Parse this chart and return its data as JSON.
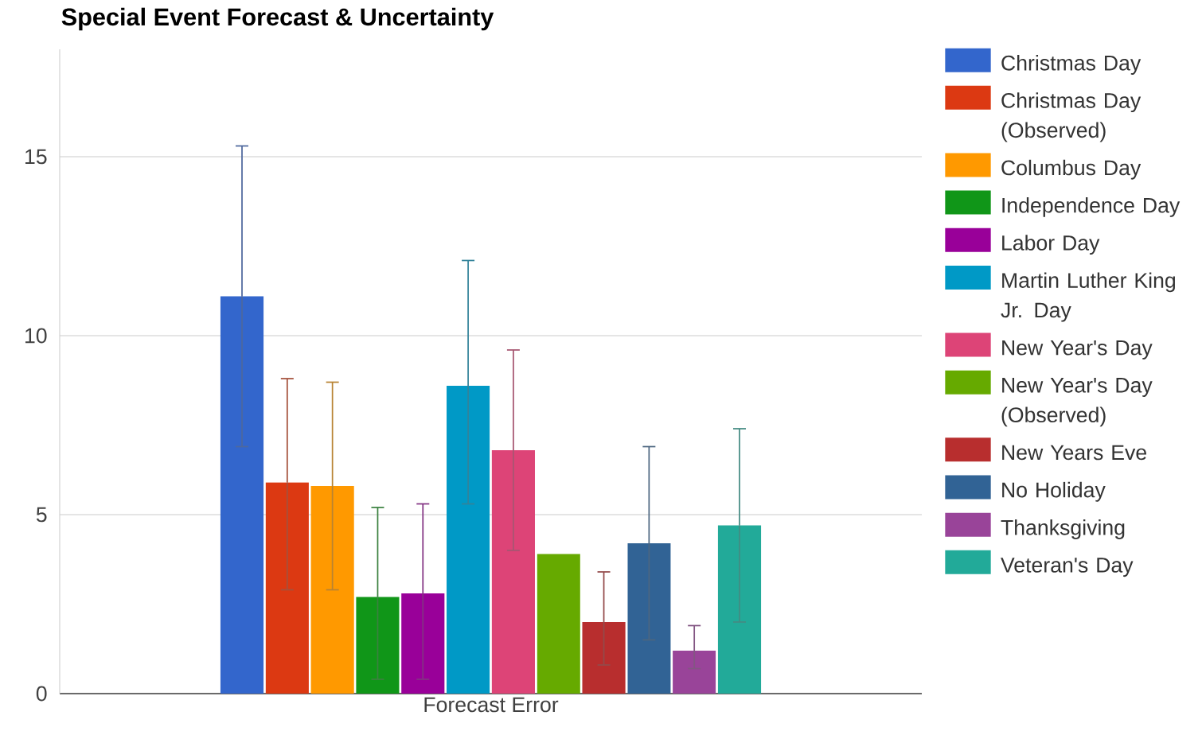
{
  "chart_data": {
    "type": "bar",
    "title": "Special Event Forecast & Uncertainty",
    "categories": [
      "Forecast Error"
    ],
    "series": [
      {
        "name": "Christmas Day",
        "color": "#3366cc",
        "values": [
          11.1
        ],
        "errors": [
          [
            6.9,
            15.3
          ]
        ]
      },
      {
        "name": "Christmas Day (Observed)",
        "color": "#dc3912",
        "values": [
          5.9
        ],
        "errors": [
          [
            2.9,
            8.8
          ]
        ]
      },
      {
        "name": "Columbus Day",
        "color": "#ff9900",
        "values": [
          5.8
        ],
        "errors": [
          [
            2.9,
            8.7
          ]
        ]
      },
      {
        "name": "Independence Day",
        "color": "#109618",
        "values": [
          2.7
        ],
        "errors": [
          [
            0.4,
            5.2
          ]
        ]
      },
      {
        "name": "Labor Day",
        "color": "#990099",
        "values": [
          2.8
        ],
        "errors": [
          [
            0.4,
            5.3
          ]
        ]
      },
      {
        "name": "Martin Luther King Jr. Day",
        "color": "#0099c6",
        "values": [
          8.6
        ],
        "errors": [
          [
            5.3,
            12.1
          ]
        ]
      },
      {
        "name": "New Year's Day",
        "color": "#dd4477",
        "values": [
          6.8
        ],
        "errors": [
          [
            4.0,
            9.6
          ]
        ]
      },
      {
        "name": "New Year's Day (Observed)",
        "color": "#66aa00",
        "values": [
          3.9
        ],
        "errors": [
          null
        ]
      },
      {
        "name": "New Years Eve",
        "color": "#b82e2e",
        "values": [
          2.0
        ],
        "errors": [
          [
            0.8,
            3.4
          ]
        ]
      },
      {
        "name": "No Holiday",
        "color": "#316395",
        "values": [
          4.2
        ],
        "errors": [
          [
            1.5,
            6.9
          ]
        ]
      },
      {
        "name": "Thanksgiving",
        "color": "#994499",
        "values": [
          1.2
        ],
        "errors": [
          [
            0.7,
            1.9
          ]
        ]
      },
      {
        "name": "Veteran's Day",
        "color": "#22aa99",
        "values": [
          4.7
        ],
        "errors": [
          [
            2.0,
            7.4
          ]
        ]
      }
    ],
    "ylim": [
      0,
      18
    ],
    "yticks": [
      0,
      5,
      10,
      15
    ],
    "grid": "y",
    "legend": "right"
  }
}
